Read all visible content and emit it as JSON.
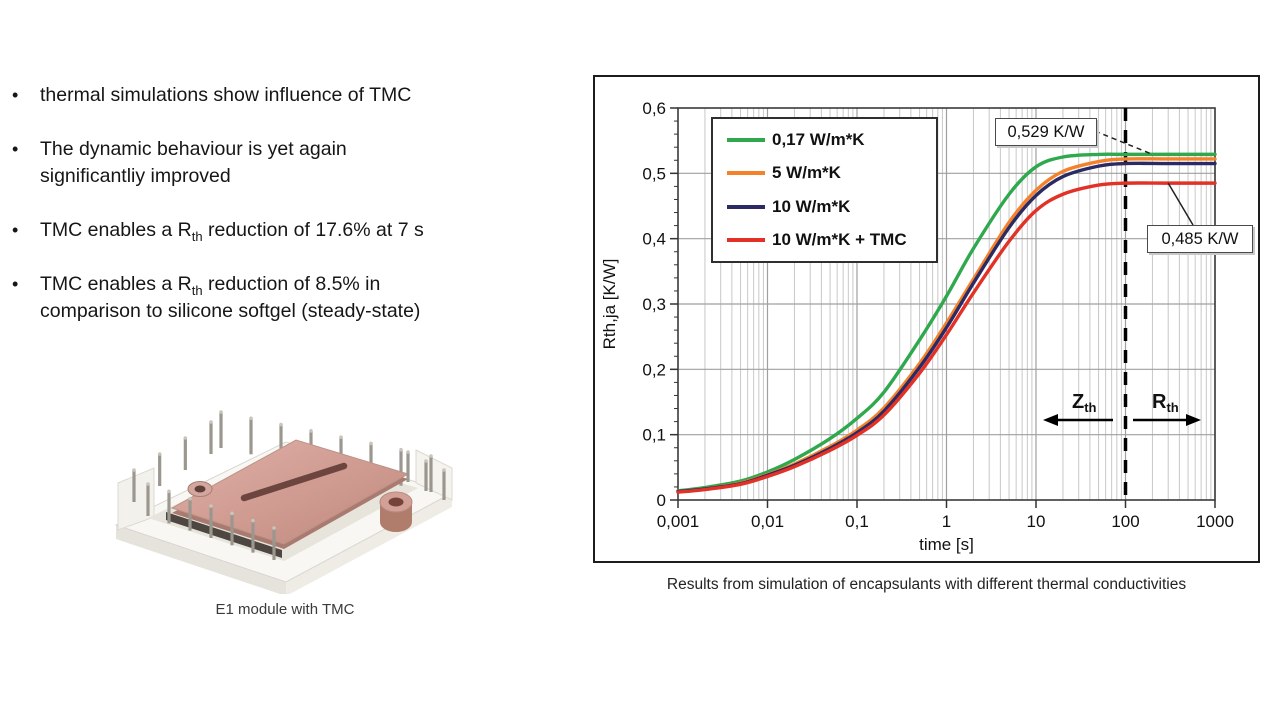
{
  "bullets": [
    {
      "parts": [
        {
          "t": "thermal simulations show influence of TMC"
        }
      ]
    },
    {
      "parts": [
        {
          "t": "The dynamic behaviour is yet again"
        },
        {
          "br": true
        },
        {
          "t": "significantliy improved"
        }
      ]
    },
    {
      "parts": [
        {
          "t": "TMC enables a R"
        },
        {
          "t": "th",
          "sub": true
        },
        {
          "t": " reduction of 17.6% at 7 s"
        }
      ]
    },
    {
      "parts": [
        {
          "t": "TMC enables a R"
        },
        {
          "t": "th",
          "sub": true
        },
        {
          "t": " reduction of 8.5% in"
        },
        {
          "br": true
        },
        {
          "t": "comparison to silicone softgel (steady-state)"
        }
      ]
    }
  ],
  "module": {
    "caption": "E1 module with TMC"
  },
  "chart_caption": "Results from simulation of encapsulants with different thermal conductivities",
  "chart_data": {
    "type": "line",
    "title": "",
    "xlabel": "time [s]",
    "ylabel": "Rth,ja [K/W]",
    "x_scale": "log",
    "xlim": [
      0.001,
      1000
    ],
    "ylim": [
      0,
      0.6
    ],
    "x_ticks": [
      "0,001",
      "0,01",
      "0,1",
      "1",
      "10",
      "100",
      "1000"
    ],
    "y_ticks": [
      "0",
      "0,1",
      "0,2",
      "0,3",
      "0,4",
      "0,5",
      "0,6"
    ],
    "grid": true,
    "legend_position": "top-left",
    "x": [
      0.001,
      0.002,
      0.005,
      0.01,
      0.02,
      0.05,
      0.1,
      0.2,
      0.5,
      1,
      2,
      5,
      10,
      20,
      50,
      100,
      300,
      1000
    ],
    "series": [
      {
        "name": "0,17 W/m*K",
        "color": "#2fa84e",
        "values": [
          0.014,
          0.019,
          0.029,
          0.043,
          0.062,
          0.094,
          0.125,
          0.165,
          0.245,
          0.312,
          0.385,
          0.468,
          0.51,
          0.525,
          0.529,
          0.529,
          0.529,
          0.529
        ]
      },
      {
        "name": "5 W/m*K",
        "color": "#f5822a",
        "values": [
          0.013,
          0.017,
          0.026,
          0.039,
          0.055,
          0.082,
          0.107,
          0.141,
          0.209,
          0.271,
          0.338,
          0.425,
          0.474,
          0.503,
          0.518,
          0.522,
          0.522,
          0.522
        ]
      },
      {
        "name": "10 W/m*K",
        "color": "#2b2a64",
        "values": [
          0.013,
          0.017,
          0.025,
          0.038,
          0.053,
          0.079,
          0.103,
          0.136,
          0.203,
          0.264,
          0.332,
          0.417,
          0.466,
          0.495,
          0.511,
          0.515,
          0.515,
          0.515
        ]
      },
      {
        "name": "10 W/m*K + TMC",
        "color": "#e23127",
        "values": [
          0.012,
          0.016,
          0.024,
          0.036,
          0.051,
          0.076,
          0.099,
          0.13,
          0.194,
          0.253,
          0.317,
          0.396,
          0.443,
          0.468,
          0.482,
          0.485,
          0.485,
          0.485
        ]
      }
    ],
    "steady_state_marker_x": 100,
    "annotations": [
      {
        "text": "0,529 K/W",
        "series": "0,17 W/m*K",
        "value": 0.529,
        "leader": "dashed"
      },
      {
        "text": "0,485 K/W",
        "series": "10 W/m*K + TMC",
        "value": 0.485,
        "leader": "solid"
      }
    ],
    "zones": {
      "left": {
        "main": "Z",
        "sub": "th"
      },
      "right": {
        "main": "R",
        "sub": "th"
      }
    }
  }
}
